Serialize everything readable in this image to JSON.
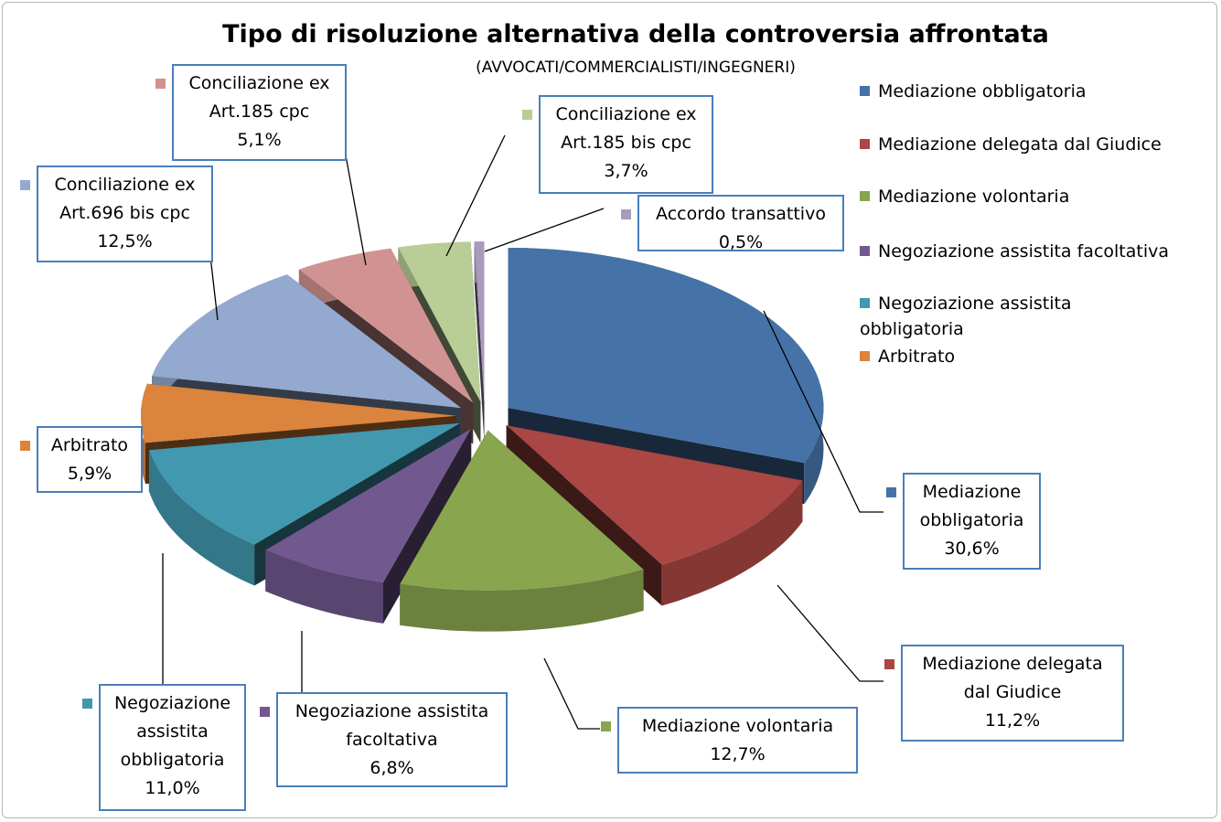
{
  "chart_data": {
    "type": "pie3d",
    "title": "Tipo di risoluzione alternativa della controversia affrontata",
    "subtitle": "(AVVOCATI/COMMERCIALISTI/INGEGNERI)",
    "categories": [
      "Mediazione obbligatoria",
      "Mediazione delegata dal Giudice",
      "Mediazione volontaria",
      "Negoziazione assistita facoltativa",
      "Negoziazione assistita obbligatoria",
      "Arbitrato",
      "Conciliazione ex Art.696 bis cpc",
      "Conciliazione ex Art.185 cpc",
      "Conciliazione ex Art.185 bis cpc",
      "Accordo transattivo"
    ],
    "values": [
      30.6,
      11.2,
      12.7,
      6.8,
      11.0,
      5.9,
      12.5,
      5.1,
      3.7,
      0.5
    ],
    "value_labels": [
      "30,6%",
      "11,2%",
      "12,7%",
      "6,8%",
      "11,0%",
      "5,9%",
      "12,5%",
      "5,1%",
      "3,7%",
      "0,5%"
    ],
    "colors": [
      "#4572a7",
      "#aa4643",
      "#89a54e",
      "#71588f",
      "#4198af",
      "#db843d",
      "#93a9cf",
      "#d19392",
      "#b9cd96",
      "#a99bbd"
    ]
  }
}
